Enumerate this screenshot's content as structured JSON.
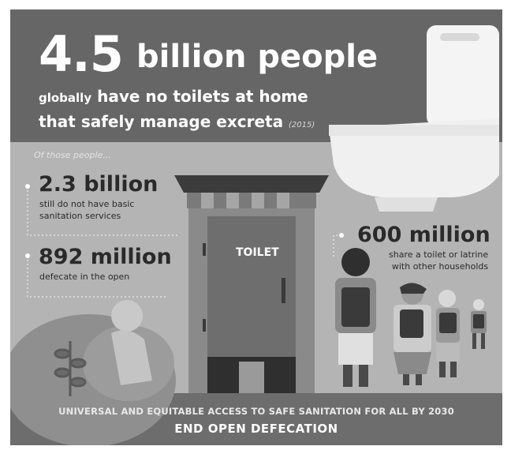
{
  "headline": {
    "number": "4.5",
    "text": "billion people",
    "line2_small": "globally",
    "line2_rest": "have no toilets at home",
    "line3": "that safely manage excreta",
    "year": "(2015)"
  },
  "intro": "Of those people...",
  "stats": [
    {
      "value": "2.3 billion",
      "desc_line1": "still do not have basic",
      "desc_line2": "sanitation services"
    },
    {
      "value": "892 million",
      "desc_line1": "defecate in the open"
    },
    {
      "value": "600 million",
      "desc_line1": "share a toilet or latrine",
      "desc_line2": "with other households"
    }
  ],
  "toilet_sign": "TOILET",
  "footer": {
    "line1": "UNIVERSAL AND EQUITABLE ACCESS TO SAFE SANITATION FOR ALL BY 2030",
    "line2": "END OPEN DEFECATION"
  },
  "icons": [
    "toilet-bowl-illustration",
    "outhouse-illustration",
    "person-squatting-illustration",
    "queue-people-illustration",
    "plant-icon"
  ],
  "colors": {
    "background": "#666666",
    "band": "#b4b4b4",
    "footer": "#6d6d6d",
    "text": "#ffffff"
  }
}
